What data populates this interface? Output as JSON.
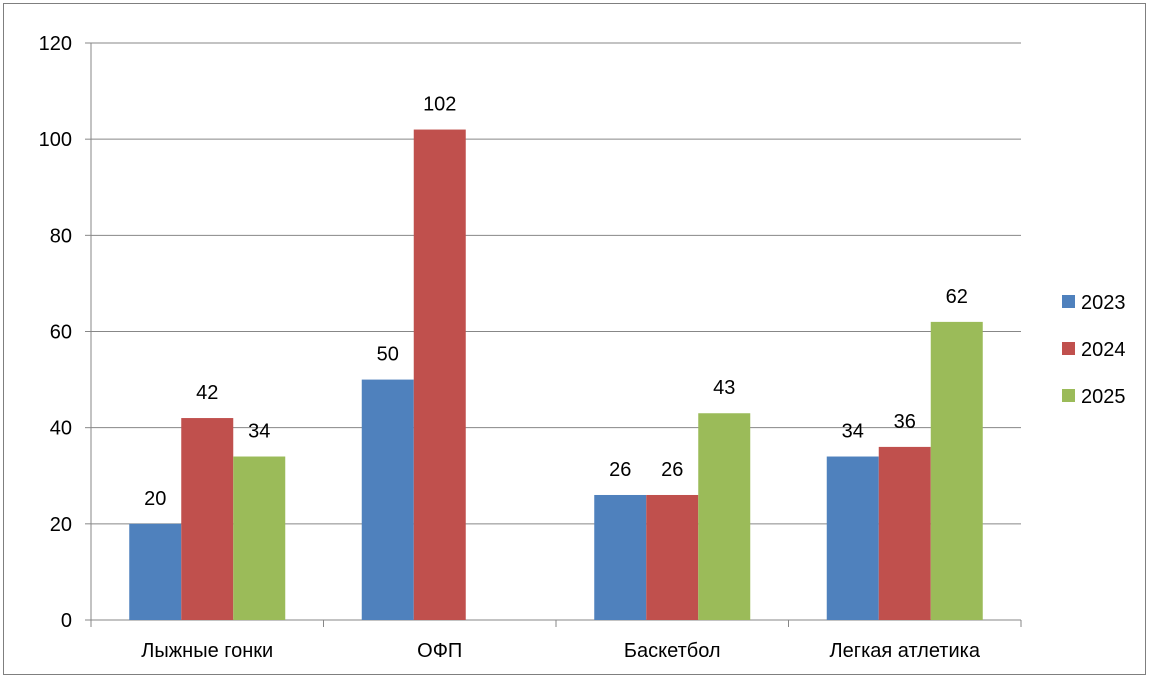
{
  "chart_data": {
    "type": "bar",
    "categories": [
      "Лыжные гонки",
      "ОФП",
      "Баскетбол",
      "Легкая атлетика"
    ],
    "series": [
      {
        "name": "2023",
        "values": [
          20,
          50,
          26,
          34
        ],
        "color": "#4f81bd"
      },
      {
        "name": "2024",
        "values": [
          42,
          102,
          26,
          36
        ],
        "color": "#c0504d"
      },
      {
        "name": "2025",
        "values": [
          34,
          null,
          43,
          62
        ],
        "color": "#9bbb59"
      }
    ],
    "y_ticks": [
      "0",
      "20",
      "40",
      "60",
      "80",
      "100",
      "120"
    ],
    "ylim": [
      0,
      120
    ],
    "grid": true,
    "legend_position": "right",
    "title": "",
    "xlabel": "",
    "ylabel": ""
  }
}
